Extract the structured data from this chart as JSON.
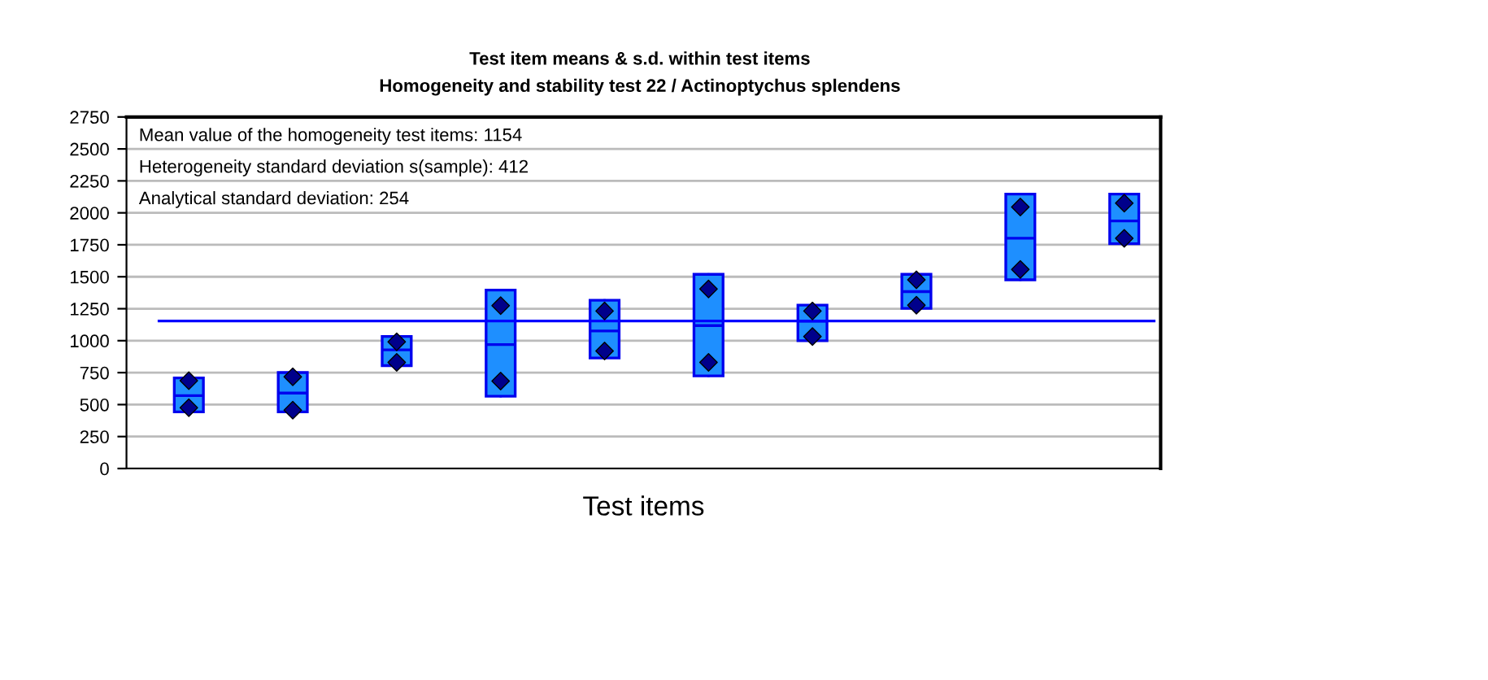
{
  "chart_data": {
    "type": "box",
    "title": "Test item means & s.d. within test items",
    "subtitle": "Homogeneity and stability test 22 / Actinoptychus splendens",
    "xlabel": "Test items",
    "annotations": [
      "Mean value of the homogeneity test items: 1154",
      "Heterogeneity standard deviation s(sample): 412",
      "Analytical standard deviation: 254"
    ],
    "categories": [
      null,
      null,
      null,
      null,
      null,
      null,
      null,
      null,
      null,
      null
    ],
    "color": "#1e8fff",
    "boxes": [
      {
        "low": 443,
        "q1": 443,
        "median": 570,
        "q3": 709,
        "high": 709
      },
      {
        "low": 443,
        "q1": 443,
        "median": 590,
        "q3": 751,
        "high": 751
      },
      {
        "low": 805,
        "q1": 805,
        "median": 928,
        "q3": 1033,
        "high": 1033
      },
      {
        "low": 565,
        "q1": 565,
        "median": 970,
        "q3": 1396,
        "high": 1396
      },
      {
        "low": 865,
        "q1": 865,
        "median": 1076,
        "q3": 1316,
        "high": 1316
      },
      {
        "low": 725,
        "q1": 725,
        "median": 1118,
        "q3": 1519,
        "high": 1519
      },
      {
        "low": 1000,
        "q1": 1000,
        "median": 1152,
        "q3": 1278,
        "high": 1278
      },
      {
        "low": 1253,
        "q1": 1253,
        "median": 1384,
        "q3": 1519,
        "high": 1519
      },
      {
        "low": 1476,
        "q1": 1476,
        "median": 1801,
        "q3": 2147,
        "high": 2147
      },
      {
        "low": 1759,
        "q1": 1759,
        "median": 1937,
        "q3": 2147,
        "high": 2147
      }
    ],
    "series": [
      {
        "type": "scatter",
        "color": "#00008b",
        "marker": "diamond",
        "values": [
          687,
          717,
          991,
          1274,
          1232,
          1405,
          1232,
          1476,
          2046,
          2076
        ]
      },
      {
        "type": "scatter",
        "color": "#00008b",
        "marker": "diamond",
        "values": [
          476,
          456,
          830,
          684,
          919,
          830,
          1033,
          1278,
          1557,
          1801
        ]
      }
    ],
    "ref_lines": [
      {
        "axis": "y",
        "value": 1154,
        "color": "#0000ff"
      }
    ],
    "ylim": [
      0,
      2750
    ],
    "yticks": [
      0,
      250,
      500,
      750,
      1000,
      1250,
      1500,
      1750,
      2000,
      2250,
      2500,
      2750
    ],
    "grid": "y",
    "tick_labels": "y",
    "legend": false
  }
}
